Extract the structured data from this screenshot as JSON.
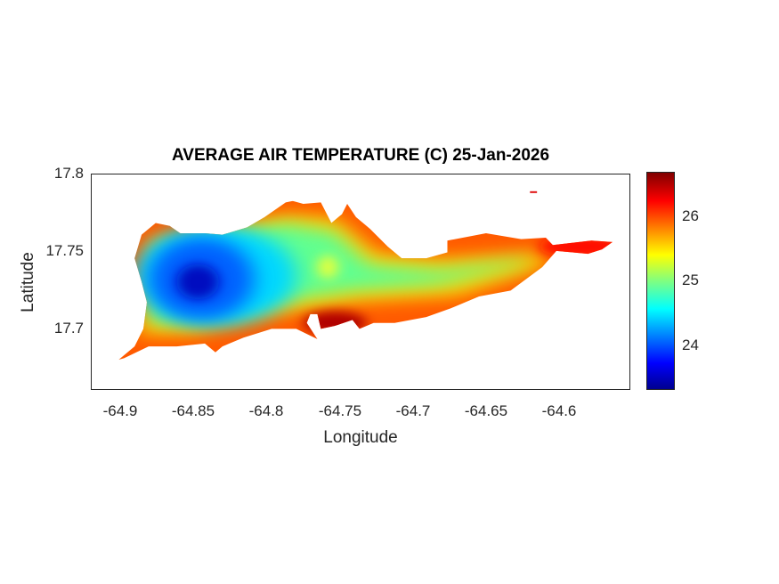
{
  "chart_data": {
    "type": "heatmap",
    "title": "AVERAGE AIR TEMPERATURE (C) 25-Jan-2026",
    "xlabel": "Longitude",
    "ylabel": "Latitude",
    "xlim": [
      -64.92,
      -64.55
    ],
    "ylim": [
      17.66,
      17.8
    ],
    "xticks": [
      "-64.9",
      "-64.85",
      "-64.8",
      "-64.75",
      "-64.7",
      "-64.65",
      "-64.6"
    ],
    "yticks": [
      "17.8",
      "17.75",
      "17.7"
    ],
    "colormap": "jet",
    "clim": [
      23.3,
      26.7
    ],
    "colorbar_ticks": [
      "26",
      "25",
      "24"
    ],
    "grid": false,
    "features": [
      {
        "note": "coldest",
        "lon": -64.85,
        "lat": 17.73,
        "value": 23.4
      },
      {
        "note": "warmest",
        "lon": -64.76,
        "lat": 17.7,
        "value": 26.7
      },
      {
        "note": "east tip",
        "lon": -64.58,
        "lat": 17.755,
        "value": 26.3
      }
    ]
  }
}
